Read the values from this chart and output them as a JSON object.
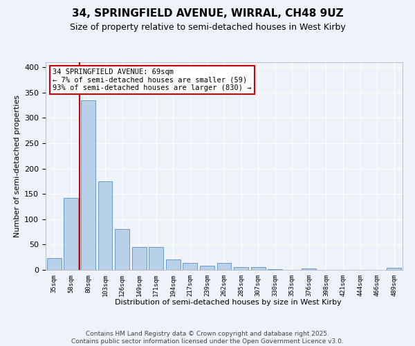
{
  "title1": "34, SPRINGFIELD AVENUE, WIRRAL, CH48 9UZ",
  "title2": "Size of property relative to semi-detached houses in West Kirby",
  "xlabel": "Distribution of semi-detached houses by size in West Kirby",
  "ylabel": "Number of semi-detached properties",
  "categories": [
    "35sqm",
    "58sqm",
    "80sqm",
    "103sqm",
    "126sqm",
    "149sqm",
    "171sqm",
    "194sqm",
    "217sqm",
    "239sqm",
    "262sqm",
    "285sqm",
    "307sqm",
    "330sqm",
    "353sqm",
    "376sqm",
    "398sqm",
    "421sqm",
    "444sqm",
    "466sqm",
    "489sqm"
  ],
  "values": [
    23,
    142,
    335,
    175,
    80,
    45,
    45,
    20,
    13,
    8,
    13,
    6,
    5,
    2,
    0,
    3,
    0,
    0,
    0,
    0,
    4
  ],
  "bar_color": "#b8d0e8",
  "bar_edge_color": "#6699cc",
  "property_line_color": "#cc0000",
  "annotation_text": "34 SPRINGFIELD AVENUE: 69sqm\n← 7% of semi-detached houses are smaller (59)\n93% of semi-detached houses are larger (830) →",
  "annotation_box_color": "#ffffff",
  "annotation_box_edge": "#cc0000",
  "footer_line1": "Contains HM Land Registry data © Crown copyright and database right 2025.",
  "footer_line2": "Contains public sector information licensed under the Open Government Licence v3.0.",
  "bg_color": "#eef2fb",
  "plot_bg_color": "#eef2fb",
  "grid_color": "#ffffff",
  "ylim": [
    0,
    410
  ],
  "yticks": [
    0,
    50,
    100,
    150,
    200,
    250,
    300,
    350,
    400
  ]
}
